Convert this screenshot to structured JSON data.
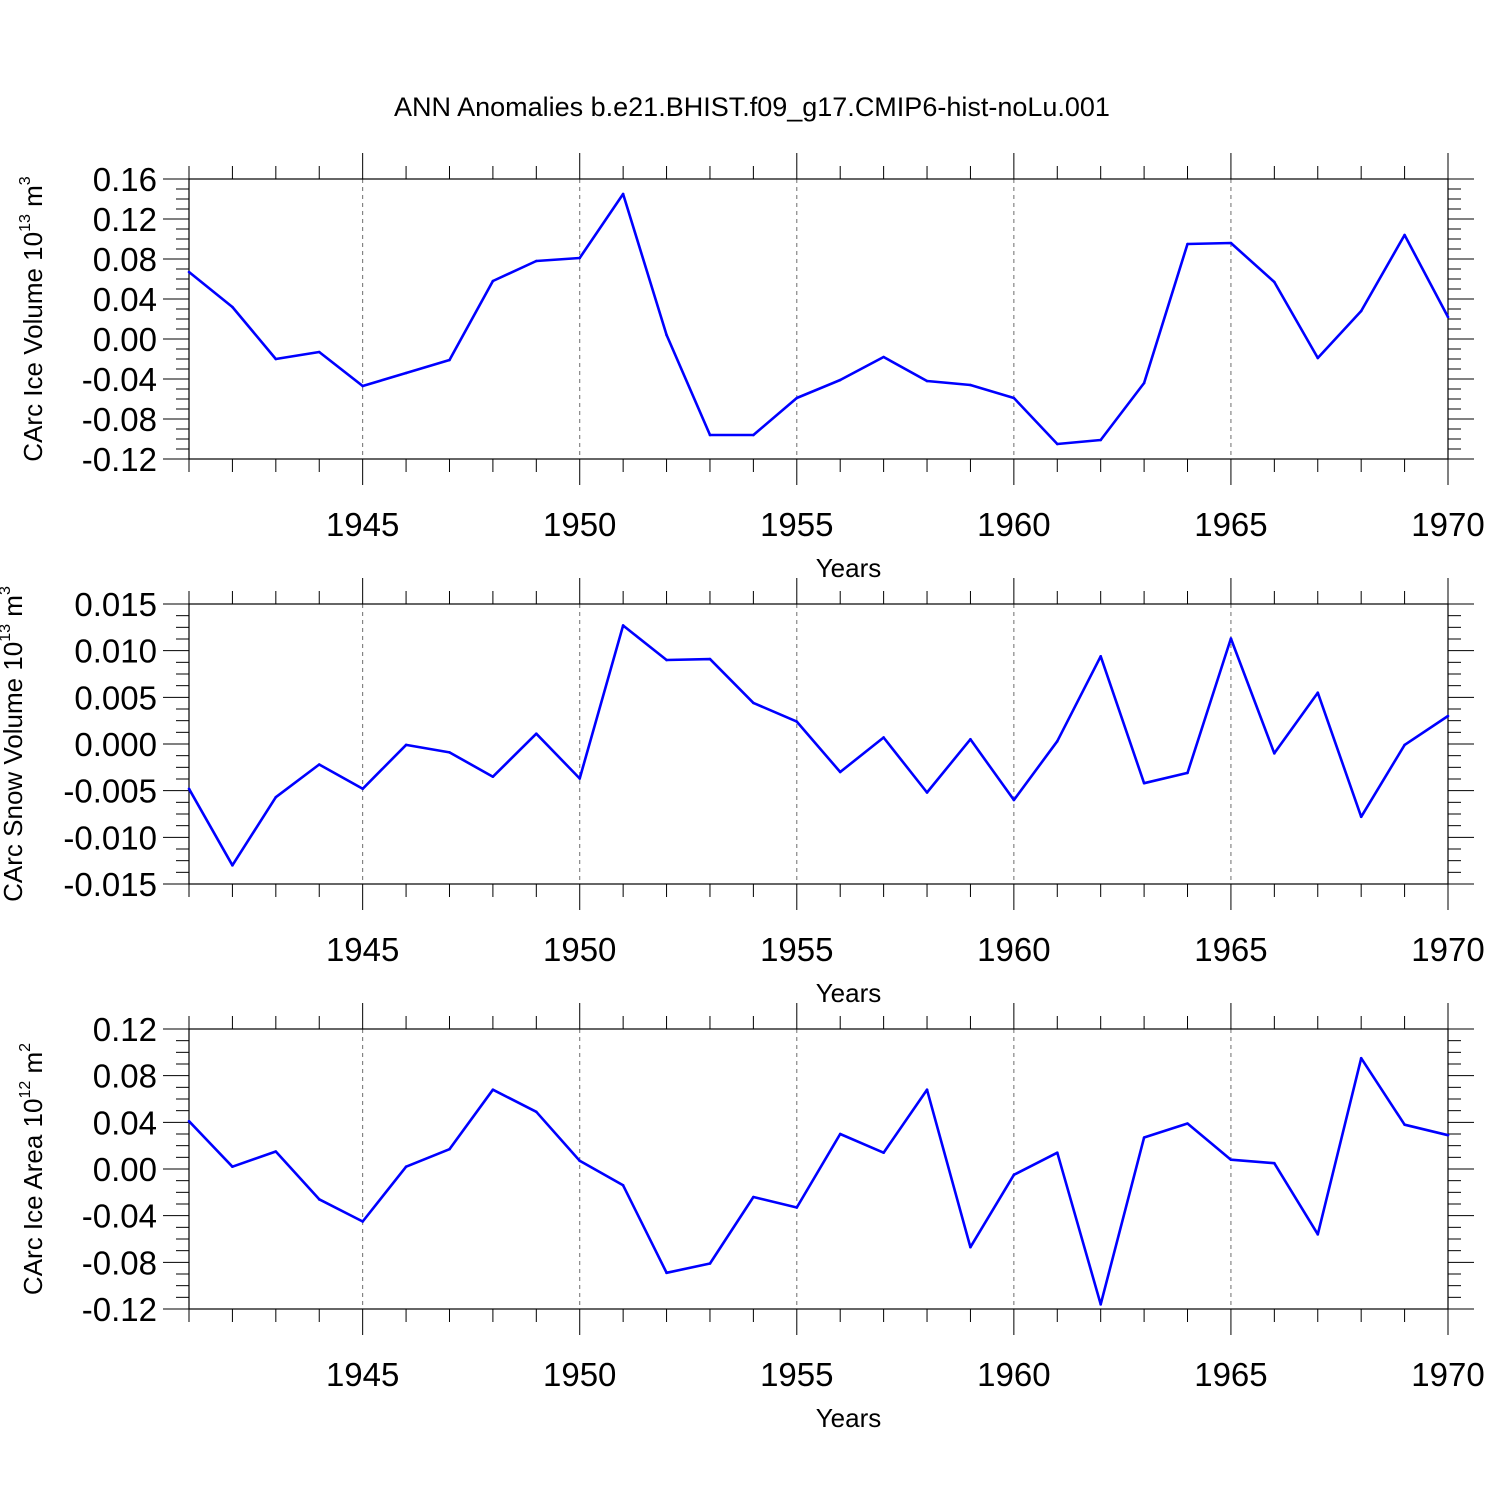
{
  "figure_title": "ANN Anomalies b.e21.BHIST.f09_g17.CMIP6-hist-noLu.001",
  "colors": {
    "line": "#0000ff",
    "axes": "#000000",
    "grid": "#6e6e6e"
  },
  "chart_data": [
    {
      "type": "line",
      "ylabel": "CArc Ice Volume 10",
      "ylabel_exp": "13",
      "ylabel_unit": " m",
      "ylabel_unit_exp": "3",
      "xlabel": "Years",
      "xlim": [
        1941,
        1970
      ],
      "ylim": [
        -0.12,
        0.16
      ],
      "yticks": [
        -0.12,
        -0.08,
        -0.04,
        0.0,
        0.04,
        0.08,
        0.12,
        0.16
      ],
      "ytick_labels": [
        "-0.12",
        "-0.08",
        "-0.04",
        "0.00",
        "0.04",
        "0.08",
        "0.12",
        "0.16"
      ],
      "xticks": [
        1945,
        1950,
        1955,
        1960,
        1965,
        1970
      ],
      "xtick_labels": [
        "1945",
        "1950",
        "1955",
        "1960",
        "1965",
        "1970"
      ],
      "grid_x": [
        1945,
        1950,
        1955,
        1960,
        1965
      ],
      "x": [
        1941,
        1942,
        1943,
        1944,
        1945,
        1946,
        1947,
        1948,
        1949,
        1950,
        1951,
        1952,
        1953,
        1954,
        1955,
        1956,
        1957,
        1958,
        1959,
        1960,
        1961,
        1962,
        1963,
        1964,
        1965,
        1966,
        1967,
        1968,
        1969,
        1970
      ],
      "y": [
        0.067,
        0.032,
        -0.02,
        -0.013,
        -0.047,
        -0.034,
        -0.021,
        0.058,
        0.078,
        0.081,
        0.145,
        0.004,
        -0.096,
        -0.096,
        -0.059,
        -0.041,
        -0.018,
        -0.042,
        -0.046,
        -0.059,
        -0.105,
        -0.101,
        -0.044,
        0.095,
        0.096,
        0.057,
        -0.019,
        0.028,
        0.104,
        0.022
      ]
    },
    {
      "type": "line",
      "ylabel": "CArc Snow Volume 10",
      "ylabel_exp": "13",
      "ylabel_unit": " m",
      "ylabel_unit_exp": "3",
      "xlabel": "Years",
      "xlim": [
        1941,
        1970
      ],
      "ylim": [
        -0.015,
        0.015
      ],
      "yticks": [
        -0.015,
        -0.01,
        -0.005,
        0.0,
        0.005,
        0.01,
        0.015
      ],
      "ytick_labels": [
        "-0.015",
        "-0.010",
        "-0.005",
        "0.000",
        "0.005",
        "0.010",
        "0.015"
      ],
      "xticks": [
        1945,
        1950,
        1955,
        1960,
        1965,
        1970
      ],
      "xtick_labels": [
        "1945",
        "1950",
        "1955",
        "1960",
        "1965",
        "1970"
      ],
      "grid_x": [
        1945,
        1950,
        1955,
        1960,
        1965
      ],
      "x": [
        1941,
        1942,
        1943,
        1944,
        1945,
        1946,
        1947,
        1948,
        1949,
        1950,
        1951,
        1952,
        1953,
        1954,
        1955,
        1956,
        1957,
        1958,
        1959,
        1960,
        1961,
        1962,
        1963,
        1964,
        1965,
        1966,
        1967,
        1968,
        1969,
        1970
      ],
      "y": [
        -0.0048,
        -0.013,
        -0.0057,
        -0.0022,
        -0.0048,
        -0.0001,
        -0.0009,
        -0.0035,
        0.0011,
        -0.0037,
        0.0127,
        0.009,
        0.0091,
        0.0044,
        0.0024,
        -0.003,
        0.0007,
        -0.0052,
        0.0005,
        -0.006,
        0.0003,
        0.0094,
        -0.0042,
        -0.0031,
        0.0113,
        -0.001,
        0.0055,
        -0.0078,
        -0.0001,
        0.003
      ]
    },
    {
      "type": "line",
      "ylabel": "CArc Ice Area 10",
      "ylabel_exp": "12",
      "ylabel_unit": " m",
      "ylabel_unit_exp": "2",
      "xlabel": "Years",
      "xlim": [
        1941,
        1970
      ],
      "ylim": [
        -0.12,
        0.12
      ],
      "yticks": [
        -0.12,
        -0.08,
        -0.04,
        0.0,
        0.04,
        0.08,
        0.12
      ],
      "ytick_labels": [
        "-0.12",
        "-0.08",
        "-0.04",
        "0.00",
        "0.04",
        "0.08",
        "0.12"
      ],
      "xticks": [
        1945,
        1950,
        1955,
        1960,
        1965,
        1970
      ],
      "xtick_labels": [
        "1945",
        "1950",
        "1955",
        "1960",
        "1965",
        "1970"
      ],
      "grid_x": [
        1945,
        1950,
        1955,
        1960,
        1965
      ],
      "x": [
        1941,
        1942,
        1943,
        1944,
        1945,
        1946,
        1947,
        1948,
        1949,
        1950,
        1951,
        1952,
        1953,
        1954,
        1955,
        1956,
        1957,
        1958,
        1959,
        1960,
        1961,
        1962,
        1963,
        1964,
        1965,
        1966,
        1967,
        1968,
        1969,
        1970
      ],
      "y": [
        0.041,
        0.002,
        0.015,
        -0.026,
        -0.045,
        0.002,
        0.017,
        0.068,
        0.049,
        0.007,
        -0.014,
        -0.089,
        -0.081,
        -0.024,
        -0.033,
        0.03,
        0.014,
        0.068,
        -0.067,
        -0.005,
        0.014,
        -0.116,
        0.027,
        0.039,
        0.008,
        0.005,
        -0.056,
        0.095,
        0.038,
        0.029
      ]
    }
  ]
}
